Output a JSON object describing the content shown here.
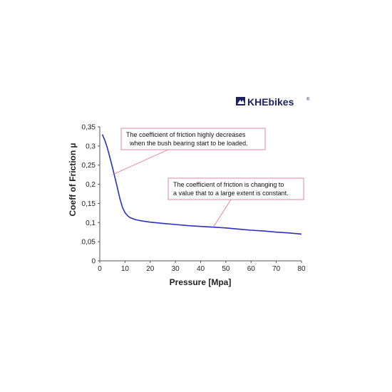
{
  "brand": {
    "name": "KHEbikes",
    "mark": "®",
    "color": "#1c2260",
    "icon": "mountain-logo-icon"
  },
  "chart_data": {
    "type": "line",
    "xlabel": "Pressure [Mpa]",
    "ylabel": "Coeff of Friction µ",
    "xlim": [
      0,
      80
    ],
    "ylim": [
      0,
      0.35
    ],
    "xticks": [
      "0",
      "10",
      "20",
      "30",
      "40",
      "50",
      "60",
      "70",
      "80"
    ],
    "yticks": [
      "0",
      "0,05",
      "0,1",
      "0,15",
      "0,2",
      "0,25",
      "0,3",
      "0,35"
    ],
    "grid": false,
    "series_color": "#2b2fc4",
    "series": [
      {
        "x": [
          1,
          2,
          3,
          4,
          5,
          6,
          7,
          8,
          9,
          10,
          11,
          12,
          14,
          16,
          18,
          20,
          25,
          30,
          35,
          40,
          45,
          50,
          55,
          60,
          65,
          70,
          75,
          80
        ],
        "y": [
          0.33,
          0.315,
          0.295,
          0.27,
          0.245,
          0.218,
          0.19,
          0.162,
          0.14,
          0.126,
          0.118,
          0.113,
          0.108,
          0.105,
          0.103,
          0.101,
          0.098,
          0.095,
          0.092,
          0.09,
          0.088,
          0.086,
          0.083,
          0.08,
          0.078,
          0.075,
          0.073,
          0.07
        ]
      }
    ],
    "annotations": [
      {
        "lines": [
          "The coefficient of friction highly decreases",
          "when the bush bearing start to be loaded."
        ],
        "target": [
          5,
          0.225
        ]
      },
      {
        "lines": [
          "The coefficient of friction is changing to",
          "a value that to a large extent is constant."
        ],
        "target": [
          45,
          0.088
        ]
      }
    ]
  }
}
